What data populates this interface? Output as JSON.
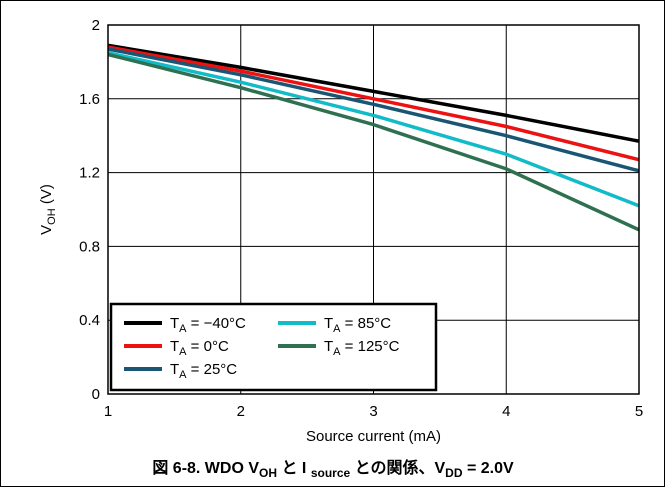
{
  "caption": {
    "prefix": "図 6-8. WDO V",
    "voh_sub": "OH",
    "mid1": " と I ",
    "source_sub": "source",
    "mid2": " との関係、V",
    "vdd_sub": "DD",
    "suffix": " = 2.0V"
  },
  "chart_data": {
    "type": "line",
    "title": "",
    "xlabel": "Source current (mA)",
    "ylabel_main": "V",
    "ylabel_sub": "OH",
    "ylabel_unit": " (V)",
    "xlim": [
      1,
      5
    ],
    "ylim": [
      0,
      2
    ],
    "xticks": [
      "1",
      "2",
      "3",
      "4",
      "5"
    ],
    "yticks": [
      "0",
      "0.4",
      "0.8",
      "1.2",
      "1.6",
      "2"
    ],
    "grid": true,
    "legend_position": "bottom-left",
    "series": [
      {
        "name_prefix": "T",
        "name_sub": "A",
        "name_value": " = −40°C",
        "color": "#000000",
        "x": [
          1,
          2,
          3,
          4,
          5
        ],
        "y": [
          1.89,
          1.77,
          1.64,
          1.51,
          1.37
        ]
      },
      {
        "name_prefix": "T",
        "name_sub": "A",
        "name_value": " = 0°C",
        "color": "#ee1111",
        "x": [
          1,
          2,
          3,
          4,
          5
        ],
        "y": [
          1.88,
          1.75,
          1.6,
          1.45,
          1.27
        ]
      },
      {
        "name_prefix": "T",
        "name_sub": "A",
        "name_value": " = 25°C",
        "color": "#1a5574",
        "x": [
          1,
          2,
          3,
          4,
          5
        ],
        "y": [
          1.87,
          1.73,
          1.57,
          1.4,
          1.21
        ]
      },
      {
        "name_prefix": "T",
        "name_sub": "A",
        "name_value": " = 85°C",
        "color": "#11bbc8",
        "x": [
          1,
          2,
          3,
          4,
          5
        ],
        "y": [
          1.85,
          1.69,
          1.51,
          1.3,
          1.02
        ]
      },
      {
        "name_prefix": "T",
        "name_sub": "A",
        "name_value": " = 125°C",
        "color": "#2e7050",
        "x": [
          1,
          2,
          3,
          4,
          5
        ],
        "y": [
          1.84,
          1.66,
          1.46,
          1.22,
          0.89
        ]
      }
    ]
  }
}
